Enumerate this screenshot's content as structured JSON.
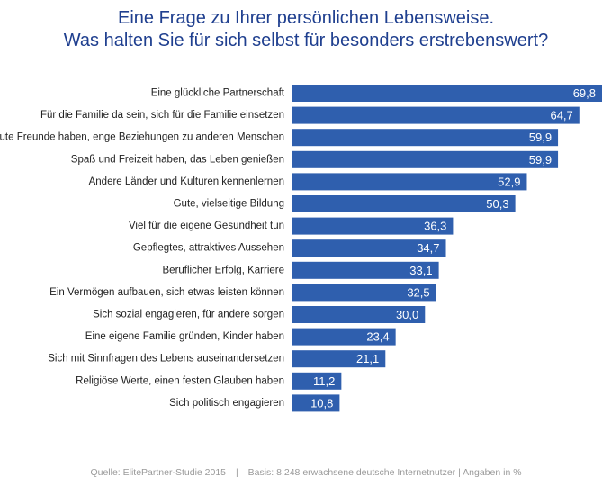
{
  "title_line1": "Eine Frage zu Ihrer persönlichen Lebensweise.",
  "title_line2": "Was halten Sie für sich selbst für besonders erstrebenswert?",
  "footer": {
    "source": "Quelle: ElitePartner-Studie 2015",
    "separator": "|",
    "basis": "Basis: 8.248 erwachsene deutsche Internetnutzer | Angaben in %"
  },
  "colors": {
    "title": "#1f3f8f",
    "bar": "#2f5fae",
    "bar_label": "#ffffff",
    "category_label": "#222222",
    "footer": "#9a9a9a"
  },
  "chart_data": {
    "type": "bar",
    "orientation": "horizontal",
    "categories": [
      "Eine glückliche Partnerschaft",
      "Für die Familie da sein, sich für die Familie einsetzen",
      "Gute Freunde haben, enge Beziehungen zu anderen Menschen",
      "Spaß und Freizeit haben, das Leben genießen",
      "Andere Länder und Kulturen kennenlernen",
      "Gute, vielseitige Bildung",
      "Viel für die eigene Gesundheit tun",
      "Gepflegtes, attraktives Aussehen",
      "Beruflicher Erfolg, Karriere",
      "Ein Vermögen aufbauen, sich etwas leisten können",
      "Sich sozial engagieren, für andere sorgen",
      "Eine eigene Familie gründen, Kinder haben",
      "Sich mit Sinnfragen des Lebens auseinandersetzen",
      "Religiöse Werte, einen festen Glauben haben",
      "Sich politisch engagieren"
    ],
    "values": [
      69.8,
      64.7,
      59.9,
      59.9,
      52.9,
      50.3,
      36.3,
      34.7,
      33.1,
      32.5,
      30.0,
      23.4,
      21.1,
      11.2,
      10.8
    ],
    "value_labels": [
      "69,8",
      "64,7",
      "59,9",
      "59,9",
      "52,9",
      "50,3",
      "36,3",
      "34,7",
      "33,1",
      "32,5",
      "30,0",
      "23,4",
      "21,1",
      "11,2",
      "10,8"
    ],
    "xlim": [
      0,
      69.8
    ],
    "grid": false,
    "legend": "none"
  }
}
